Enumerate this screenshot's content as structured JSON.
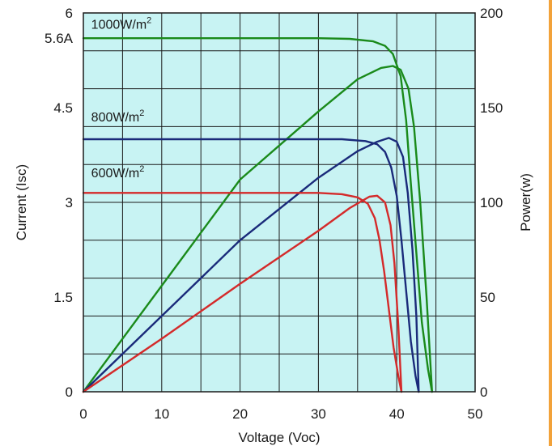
{
  "chart_data": {
    "type": "line",
    "xlabel": "Voltage (Voc)",
    "ylabel_left": "Current (Isc)",
    "ylabel_right": "Power(w)",
    "xlim": [
      0,
      50
    ],
    "ylim_left": [
      0,
      6
    ],
    "ylim_right": [
      0,
      200
    ],
    "x_ticks": [
      "0",
      "10",
      "20",
      "30",
      "40",
      "50"
    ],
    "y_left_ticks": [
      {
        "value": 0,
        "label": "0"
      },
      {
        "value": 1.5,
        "label": "1.5"
      },
      {
        "value": 3,
        "label": "3"
      },
      {
        "value": 4.5,
        "label": "4.5"
      },
      {
        "value": 5.6,
        "label": "5.6A"
      },
      {
        "value": 6,
        "label": "6"
      }
    ],
    "y_right_ticks": [
      "0",
      "50",
      "100",
      "150",
      "200"
    ],
    "grid": true,
    "plot_background": "#c8f3f3",
    "annotations": [
      {
        "base": "1000W/m",
        "sup": "2",
        "x": 1,
        "y": 5.75
      },
      {
        "base": "800W/m",
        "sup": "2",
        "x": 1,
        "y": 4.28
      },
      {
        "base": "600W/m",
        "sup": "2",
        "x": 1,
        "y": 3.4
      }
    ],
    "series": [
      {
        "irradiance": "1000W/m2",
        "color": "#1a8a1a",
        "iv_curve": [
          [
            0,
            5.6
          ],
          [
            16,
            5.6
          ],
          [
            30,
            5.6
          ],
          [
            34,
            5.59
          ],
          [
            37,
            5.55
          ],
          [
            38.5,
            5.48
          ],
          [
            39.5,
            5.35
          ],
          [
            40.5,
            5.0
          ],
          [
            41.2,
            4.3
          ],
          [
            41.8,
            3.3
          ],
          [
            42.5,
            2.2
          ],
          [
            43.2,
            1.1
          ],
          [
            44,
            0.35
          ],
          [
            44.5,
            0
          ]
        ],
        "power_curve": [
          [
            0,
            0
          ],
          [
            10,
            56
          ],
          [
            20,
            112
          ],
          [
            30,
            148
          ],
          [
            35,
            165
          ],
          [
            38,
            171
          ],
          [
            39.5,
            172
          ],
          [
            40.5,
            170
          ],
          [
            41.5,
            160
          ],
          [
            42.2,
            140
          ],
          [
            43,
            100
          ],
          [
            43.8,
            50
          ],
          [
            44.5,
            0
          ]
        ]
      },
      {
        "irradiance": "800W/m2",
        "color": "#1a2a7a",
        "iv_curve": [
          [
            0,
            4.0
          ],
          [
            20,
            4.0
          ],
          [
            33,
            4.0
          ],
          [
            36,
            3.97
          ],
          [
            37.5,
            3.92
          ],
          [
            38.5,
            3.8
          ],
          [
            39.3,
            3.55
          ],
          [
            40,
            3.1
          ],
          [
            40.6,
            2.4
          ],
          [
            41.2,
            1.6
          ],
          [
            41.8,
            0.8
          ],
          [
            42.4,
            0.25
          ],
          [
            42.8,
            0
          ]
        ],
        "power_curve": [
          [
            0,
            0
          ],
          [
            10,
            40
          ],
          [
            20,
            80
          ],
          [
            30,
            113
          ],
          [
            35,
            127
          ],
          [
            37.5,
            132
          ],
          [
            39,
            134
          ],
          [
            40,
            132
          ],
          [
            40.8,
            124
          ],
          [
            41.4,
            105
          ],
          [
            42,
            75
          ],
          [
            42.5,
            40
          ],
          [
            42.8,
            0
          ]
        ]
      },
      {
        "irradiance": "600W/m2",
        "color": "#d42a2a",
        "iv_curve": [
          [
            0,
            3.15
          ],
          [
            20,
            3.15
          ],
          [
            30,
            3.15
          ],
          [
            33,
            3.13
          ],
          [
            35,
            3.08
          ],
          [
            36.3,
            2.98
          ],
          [
            37.2,
            2.75
          ],
          [
            37.8,
            2.4
          ],
          [
            38.4,
            1.9
          ],
          [
            39,
            1.3
          ],
          [
            39.6,
            0.7
          ],
          [
            40.2,
            0.25
          ],
          [
            40.6,
            0
          ]
        ],
        "power_curve": [
          [
            0,
            0
          ],
          [
            10,
            28
          ],
          [
            20,
            57
          ],
          [
            30,
            85
          ],
          [
            34,
            97
          ],
          [
            36.5,
            103
          ],
          [
            37.5,
            103.5
          ],
          [
            38.5,
            100
          ],
          [
            39.2,
            88
          ],
          [
            39.7,
            68
          ],
          [
            40.2,
            35
          ],
          [
            40.6,
            0
          ]
        ]
      }
    ]
  }
}
